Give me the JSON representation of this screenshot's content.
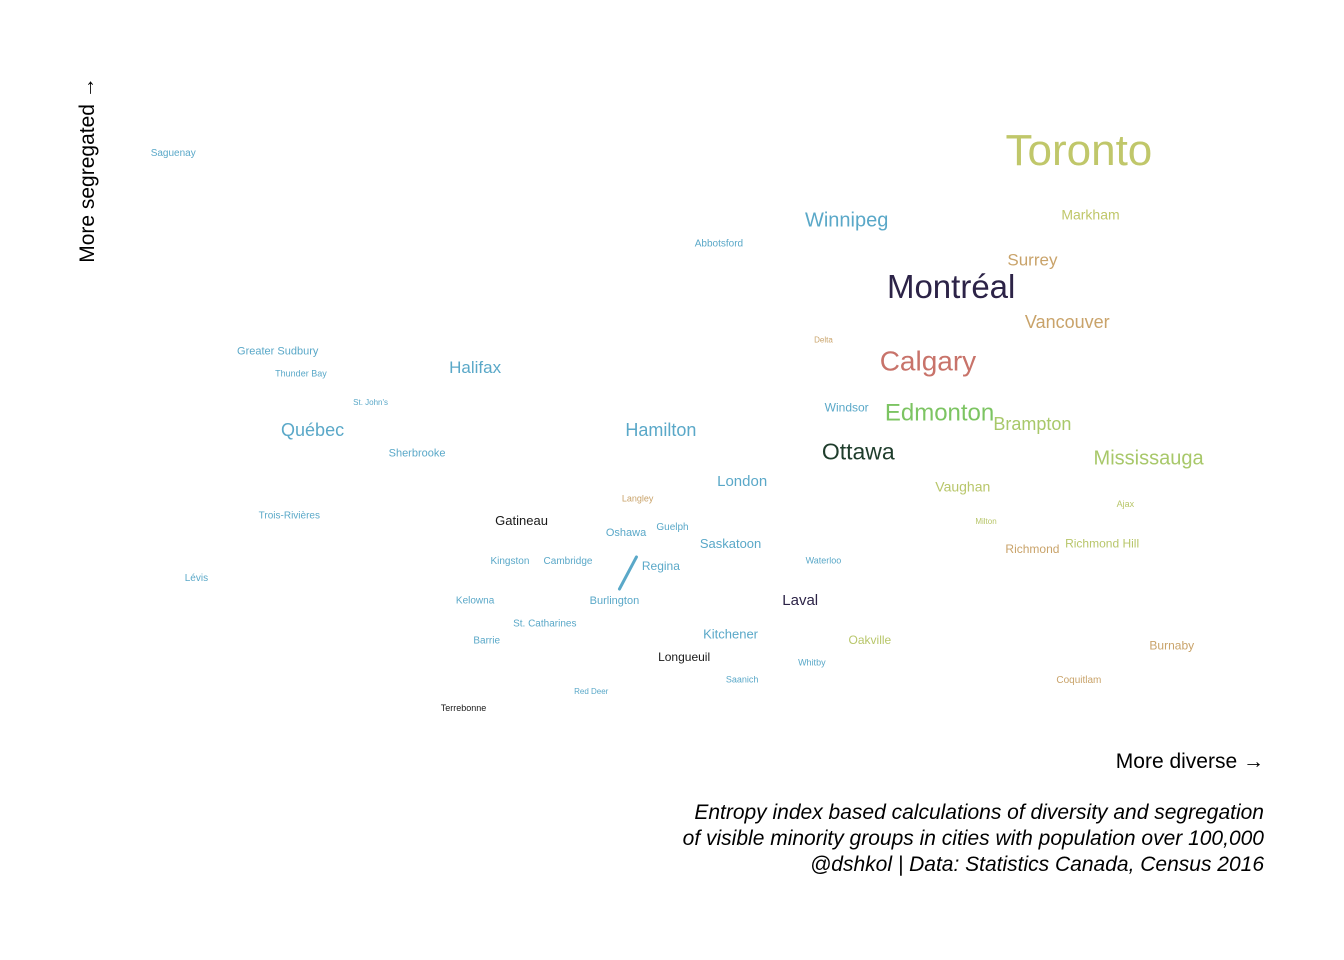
{
  "chart_data": {
    "type": "scatter",
    "xlabel": "More diverse →",
    "ylabel": "More segregated →",
    "caption": [
      "Entropy index based calculations of diversity and segregation",
      "of visible minority groups in cities with population over 100,000",
      "@dshkol | Data: Statistics Canada, Census 2016"
    ],
    "points": [
      {
        "name": "Toronto",
        "x": 0.8,
        "y": 0.95,
        "size": 44,
        "color": "#c0c76a"
      },
      {
        "name": "Markham",
        "x": 0.81,
        "y": 0.84,
        "size": 14,
        "color": "#c0c76a"
      },
      {
        "name": "Winnipeg",
        "x": 0.6,
        "y": 0.83,
        "size": 20,
        "color": "#5aa8c8"
      },
      {
        "name": "Abbotsford",
        "x": 0.49,
        "y": 0.79,
        "size": 10,
        "color": "#5aa8c8"
      },
      {
        "name": "Surrey",
        "x": 0.76,
        "y": 0.76,
        "size": 17,
        "color": "#c9a36a"
      },
      {
        "name": "Montréal",
        "x": 0.69,
        "y": 0.71,
        "size": 33,
        "color": "#2c2347"
      },
      {
        "name": "Vancouver",
        "x": 0.79,
        "y": 0.65,
        "size": 18,
        "color": "#c9a36a"
      },
      {
        "name": "Delta",
        "x": 0.58,
        "y": 0.62,
        "size": 8,
        "color": "#c9a36a"
      },
      {
        "name": "Calgary",
        "x": 0.67,
        "y": 0.58,
        "size": 28,
        "color": "#c8736a"
      },
      {
        "name": "Saguenay",
        "x": 0.02,
        "y": 0.95,
        "size": 10,
        "color": "#5aa8c8"
      },
      {
        "name": "Greater Sudbury",
        "x": 0.11,
        "y": 0.6,
        "size": 11,
        "color": "#5aa8c8"
      },
      {
        "name": "Thunder Bay",
        "x": 0.13,
        "y": 0.56,
        "size": 9,
        "color": "#5aa8c8"
      },
      {
        "name": "Halifax",
        "x": 0.28,
        "y": 0.57,
        "size": 17,
        "color": "#5aa8c8"
      },
      {
        "name": "St. John's",
        "x": 0.19,
        "y": 0.51,
        "size": 8,
        "color": "#5aa8c8"
      },
      {
        "name": "Québec",
        "x": 0.14,
        "y": 0.46,
        "size": 18,
        "color": "#5aa8c8"
      },
      {
        "name": "Sherbrooke",
        "x": 0.23,
        "y": 0.42,
        "size": 11,
        "color": "#5aa8c8"
      },
      {
        "name": "Windsor",
        "x": 0.6,
        "y": 0.5,
        "size": 12,
        "color": "#5aa8c8"
      },
      {
        "name": "Edmonton",
        "x": 0.68,
        "y": 0.49,
        "size": 24,
        "color": "#7cc462"
      },
      {
        "name": "Brampton",
        "x": 0.76,
        "y": 0.47,
        "size": 18,
        "color": "#a8c86a"
      },
      {
        "name": "Hamilton",
        "x": 0.44,
        "y": 0.46,
        "size": 18,
        "color": "#5aa8c8"
      },
      {
        "name": "Ottawa",
        "x": 0.61,
        "y": 0.42,
        "size": 23,
        "color": "#1f3d2c"
      },
      {
        "name": "Mississauga",
        "x": 0.86,
        "y": 0.41,
        "size": 20,
        "color": "#a8c86a"
      },
      {
        "name": "London",
        "x": 0.51,
        "y": 0.37,
        "size": 15,
        "color": "#5aa8c8"
      },
      {
        "name": "Vaughan",
        "x": 0.7,
        "y": 0.36,
        "size": 14,
        "color": "#b8c66a"
      },
      {
        "name": "Langley",
        "x": 0.42,
        "y": 0.34,
        "size": 9,
        "color": "#c9a36a"
      },
      {
        "name": "Ajax",
        "x": 0.84,
        "y": 0.33,
        "size": 9,
        "color": "#b8c66a"
      },
      {
        "name": "Trois-Rivières",
        "x": 0.12,
        "y": 0.31,
        "size": 10,
        "color": "#5aa8c8"
      },
      {
        "name": "Gatineau",
        "x": 0.32,
        "y": 0.3,
        "size": 13,
        "color": "#1a1a1a"
      },
      {
        "name": "Milton",
        "x": 0.72,
        "y": 0.3,
        "size": 8,
        "color": "#b8c66a"
      },
      {
        "name": "Guelph",
        "x": 0.45,
        "y": 0.29,
        "size": 10,
        "color": "#5aa8c8"
      },
      {
        "name": "Oshawa",
        "x": 0.41,
        "y": 0.28,
        "size": 11,
        "color": "#5aa8c8"
      },
      {
        "name": "Saskatoon",
        "x": 0.5,
        "y": 0.26,
        "size": 13,
        "color": "#5aa8c8"
      },
      {
        "name": "Richmond",
        "x": 0.76,
        "y": 0.25,
        "size": 12,
        "color": "#c9a36a"
      },
      {
        "name": "Richmond Hill",
        "x": 0.82,
        "y": 0.26,
        "size": 12,
        "color": "#b8c66a"
      },
      {
        "name": "Kingston",
        "x": 0.31,
        "y": 0.23,
        "size": 10,
        "color": "#5aa8c8"
      },
      {
        "name": "Cambridge",
        "x": 0.36,
        "y": 0.23,
        "size": 10,
        "color": "#5aa8c8"
      },
      {
        "name": "Waterloo",
        "x": 0.58,
        "y": 0.23,
        "size": 9,
        "color": "#5aa8c8"
      },
      {
        "name": "Regina",
        "x": 0.44,
        "y": 0.22,
        "size": 12,
        "color": "#5aa8c8"
      },
      {
        "name": "Lévis",
        "x": 0.04,
        "y": 0.2,
        "size": 10,
        "color": "#5aa8c8"
      },
      {
        "name": "Burlington",
        "x": 0.4,
        "y": 0.16,
        "size": 11,
        "color": "#5aa8c8"
      },
      {
        "name": "Kelowna",
        "x": 0.28,
        "y": 0.16,
        "size": 10,
        "color": "#5aa8c8"
      },
      {
        "name": "Laval",
        "x": 0.56,
        "y": 0.16,
        "size": 15,
        "color": "#2c2347"
      },
      {
        "name": "St. Catharines",
        "x": 0.34,
        "y": 0.12,
        "size": 10,
        "color": "#5aa8c8"
      },
      {
        "name": "Kitchener",
        "x": 0.5,
        "y": 0.1,
        "size": 13,
        "color": "#5aa8c8"
      },
      {
        "name": "Barrie",
        "x": 0.29,
        "y": 0.09,
        "size": 10,
        "color": "#5aa8c8"
      },
      {
        "name": "Oakville",
        "x": 0.62,
        "y": 0.09,
        "size": 12,
        "color": "#b8c66a"
      },
      {
        "name": "Burnaby",
        "x": 0.88,
        "y": 0.08,
        "size": 12,
        "color": "#c9a36a"
      },
      {
        "name": "Longueuil",
        "x": 0.46,
        "y": 0.06,
        "size": 12,
        "color": "#1a1a1a"
      },
      {
        "name": "Whitby",
        "x": 0.57,
        "y": 0.05,
        "size": 9,
        "color": "#5aa8c8"
      },
      {
        "name": "Saanich",
        "x": 0.51,
        "y": 0.02,
        "size": 9,
        "color": "#5aa8c8"
      },
      {
        "name": "Coquitlam",
        "x": 0.8,
        "y": 0.02,
        "size": 10,
        "color": "#c9a36a"
      },
      {
        "name": "Red Deer",
        "x": 0.38,
        "y": 0.0,
        "size": 8,
        "color": "#5aa8c8"
      },
      {
        "name": "Terrebonne",
        "x": 0.27,
        "y": -0.03,
        "size": 9,
        "color": "#1a1a1a"
      }
    ],
    "xlim": [
      0,
      0.9
    ],
    "ylim": [
      -0.05,
      1.0
    ],
    "grid": false,
    "legend": "none"
  }
}
